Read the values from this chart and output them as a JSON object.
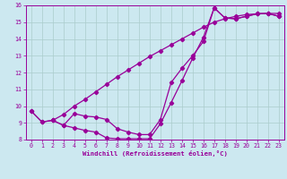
{
  "xlabel": "Windchill (Refroidissement éolien,°C)",
  "bg_color": "#cce8f0",
  "line_color": "#990099",
  "grid_color": "#aacccc",
  "xlim": [
    -0.5,
    23.5
  ],
  "ylim": [
    8,
    16
  ],
  "xticks": [
    0,
    1,
    2,
    3,
    4,
    5,
    6,
    7,
    8,
    9,
    10,
    11,
    12,
    13,
    14,
    15,
    16,
    17,
    18,
    19,
    20,
    21,
    22,
    23
  ],
  "yticks": [
    8,
    9,
    10,
    11,
    12,
    13,
    14,
    15,
    16
  ],
  "line1_x": [
    0,
    1,
    2,
    3,
    4,
    5,
    6,
    7,
    8,
    9,
    10,
    11,
    12,
    13,
    14,
    15,
    16,
    17,
    18,
    19,
    20,
    21,
    22,
    23
  ],
  "line1_y": [
    9.7,
    9.05,
    9.15,
    9.5,
    10.0,
    10.4,
    10.85,
    11.3,
    11.75,
    12.15,
    12.55,
    12.95,
    13.3,
    13.65,
    14.0,
    14.35,
    14.7,
    15.0,
    15.2,
    15.35,
    15.45,
    15.5,
    15.52,
    15.52
  ],
  "line2_x": [
    0,
    1,
    2,
    3,
    4,
    5,
    6,
    7,
    8,
    9,
    10,
    11,
    12,
    13,
    14,
    15,
    16,
    17,
    18,
    19,
    20,
    21,
    22,
    23
  ],
  "line2_y": [
    9.7,
    9.05,
    9.15,
    8.85,
    8.7,
    8.55,
    8.45,
    8.1,
    8.05,
    8.05,
    8.05,
    8.05,
    8.95,
    10.2,
    11.5,
    12.85,
    14.1,
    15.85,
    15.25,
    15.2,
    15.35,
    15.5,
    15.52,
    15.35
  ],
  "line3_x": [
    2,
    3,
    4,
    5,
    6,
    7,
    8,
    9,
    10,
    11,
    12,
    13,
    14,
    15,
    16,
    17,
    18,
    19,
    20,
    21,
    22,
    23
  ],
  "line3_y": [
    9.15,
    8.85,
    9.55,
    9.4,
    9.35,
    9.2,
    8.65,
    8.45,
    8.3,
    8.3,
    9.2,
    11.4,
    12.25,
    13.0,
    13.85,
    15.85,
    15.25,
    15.2,
    15.35,
    15.5,
    15.52,
    15.35
  ]
}
